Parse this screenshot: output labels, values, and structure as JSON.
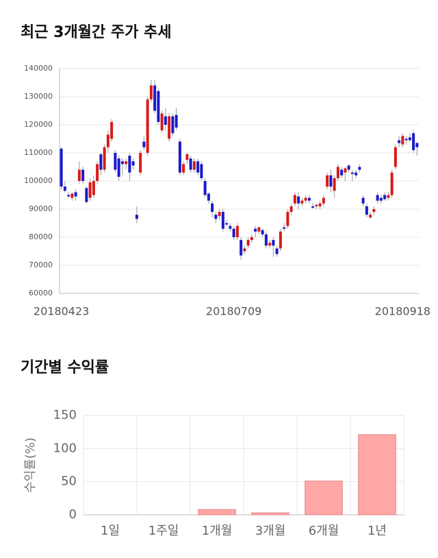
{
  "chart_data": [
    {
      "type": "candlestick",
      "title": "최근 3개월간 주가 추세",
      "categories": [
        "20180423",
        null,
        null,
        null,
        null,
        null,
        null,
        null,
        null,
        null,
        null,
        null,
        null,
        null,
        null,
        null,
        null,
        null,
        null,
        null,
        null,
        null,
        null,
        null,
        null,
        null,
        null,
        null,
        null,
        null,
        null,
        null,
        null,
        null,
        null,
        null,
        null,
        null,
        null,
        null,
        null,
        null,
        null,
        null,
        null,
        null,
        null,
        null,
        "20180709",
        null,
        null,
        null,
        null,
        null,
        null,
        null,
        null,
        null,
        null,
        null,
        null,
        null,
        null,
        null,
        null,
        null,
        null,
        null,
        null,
        null,
        null,
        null,
        null,
        null,
        null,
        null,
        null,
        null,
        null,
        null,
        null,
        null,
        null,
        null,
        null,
        null,
        null,
        null,
        null,
        null,
        null,
        null,
        null,
        null,
        null,
        "20180918",
        null,
        null,
        null,
        null
      ],
      "open": [
        111500,
        98000,
        95000,
        94000,
        96000,
        100000,
        104000,
        97500,
        94000,
        95000,
        100000,
        109500,
        104000,
        112000,
        115000,
        110000,
        108000,
        107000,
        106000,
        109000,
        107000,
        88000,
        103000,
        114000,
        110000,
        129000,
        134000,
        132000,
        118000,
        123000,
        115000,
        123000,
        123500,
        114000,
        103000,
        107500,
        108000,
        104000,
        107000,
        106000,
        100000,
        95500,
        92000,
        88000,
        87500,
        89000,
        85000,
        84000,
        83000,
        80000,
        79000,
        75000,
        77000,
        79000,
        83000,
        82000,
        82500,
        81000,
        77000,
        79000,
        76000,
        76000,
        83500,
        84000,
        89000,
        92000,
        94500,
        92000,
        93000,
        94000,
        91000,
        91000,
        91000,
        92000,
        98000,
        102000,
        96500,
        101000,
        104000,
        103000,
        105500,
        103000,
        103000,
        105000,
        94000,
        91000,
        87000,
        89000,
        95000,
        94000,
        95000,
        94000,
        95000,
        105000,
        114500,
        113000,
        115000,
        115500,
        117000,
        113500
      ],
      "high": [
        112000,
        100000,
        96000,
        96000,
        97000,
        107000,
        105000,
        98000,
        101000,
        102000,
        107000,
        110000,
        113000,
        118000,
        122000,
        111000,
        109000,
        108000,
        108000,
        110000,
        108000,
        91000,
        111000,
        116000,
        130000,
        136000,
        136000,
        133000,
        125000,
        126000,
        124000,
        124000,
        126000,
        115000,
        107000,
        110000,
        109000,
        108000,
        108000,
        107000,
        101000,
        96000,
        93000,
        89000,
        90000,
        90000,
        86000,
        85000,
        84000,
        85000,
        80000,
        77000,
        80000,
        81000,
        84000,
        84000,
        83000,
        82000,
        79000,
        80000,
        77000,
        83000,
        85000,
        90000,
        92000,
        96000,
        96000,
        94000,
        95000,
        95000,
        92000,
        92000,
        93000,
        95000,
        103000,
        104000,
        102000,
        106000,
        105000,
        105000,
        106000,
        104000,
        104000,
        106000,
        95000,
        92000,
        89000,
        91000,
        96000,
        95000,
        96000,
        96000,
        104000,
        113000,
        116000,
        117000,
        116000,
        117000,
        118000,
        114000
      ],
      "low": [
        97000,
        96000,
        94000,
        93000,
        93000,
        99000,
        99000,
        92000,
        93000,
        94000,
        99000,
        102000,
        103000,
        110000,
        114000,
        103000,
        100000,
        102000,
        104000,
        100000,
        104000,
        85000,
        102000,
        111000,
        109000,
        128000,
        124000,
        120000,
        117000,
        118000,
        114000,
        116000,
        118000,
        102000,
        102000,
        106000,
        103000,
        103000,
        102000,
        100000,
        94000,
        92000,
        87000,
        85000,
        86000,
        82000,
        84000,
        82000,
        79000,
        79000,
        72000,
        74000,
        76000,
        78000,
        80000,
        81000,
        80000,
        76000,
        76000,
        73000,
        73000,
        75000,
        82000,
        83000,
        88000,
        91000,
        90000,
        91000,
        92000,
        92000,
        90000,
        90000,
        90000,
        91000,
        97000,
        96000,
        94000,
        100000,
        101000,
        100000,
        103000,
        100000,
        101000,
        103000,
        91000,
        87000,
        86500,
        88000,
        92000,
        92000,
        93000,
        93000,
        94000,
        104000,
        112000,
        112000,
        113000,
        114000,
        110000,
        109000
      ],
      "close": [
        98000,
        96500,
        94500,
        95500,
        94500,
        104000,
        100000,
        92500,
        99500,
        100000,
        106000,
        104000,
        112000,
        116500,
        121000,
        104000,
        101500,
        106000,
        107000,
        103000,
        105500,
        86500,
        110000,
        112000,
        129000,
        134000,
        125000,
        121000,
        124000,
        120000,
        123000,
        117000,
        119000,
        103000,
        106000,
        109500,
        104000,
        107000,
        103000,
        101000,
        95000,
        93000,
        89000,
        86500,
        89000,
        83000,
        84500,
        83000,
        80000,
        84000,
        73500,
        76000,
        79000,
        80000,
        82000,
        83500,
        81000,
        77000,
        78000,
        77000,
        74000,
        82000,
        83000,
        89000,
        91000,
        95000,
        92000,
        93000,
        94000,
        93000,
        90500,
        91500,
        92000,
        94000,
        102000,
        98000,
        101000,
        105000,
        102000,
        104500,
        104000,
        102500,
        102000,
        104000,
        92000,
        88000,
        88000,
        90000,
        93000,
        93000,
        93500,
        95000,
        103000,
        112000,
        113500,
        116000,
        114500,
        114500,
        111000,
        112000
      ],
      "up_color": "#d91a1a",
      "down_color": "#1a1acc",
      "ylim": [
        60000,
        140000
      ],
      "yticks": [
        60000,
        70000,
        80000,
        90000,
        100000,
        110000,
        120000,
        130000,
        140000
      ],
      "grid": true
    },
    {
      "type": "bar",
      "title": "기간별 수익률",
      "ylabel": "수익률(%)",
      "categories": [
        "1일",
        "1주일",
        "1개월",
        "3개월",
        "6개월",
        "1년"
      ],
      "values": [
        0,
        0,
        8,
        3,
        51,
        121
      ],
      "color": "#ffa6a6",
      "ylim": [
        0,
        150
      ],
      "yticks": [
        0,
        50,
        100,
        150
      ],
      "grid": true
    }
  ]
}
